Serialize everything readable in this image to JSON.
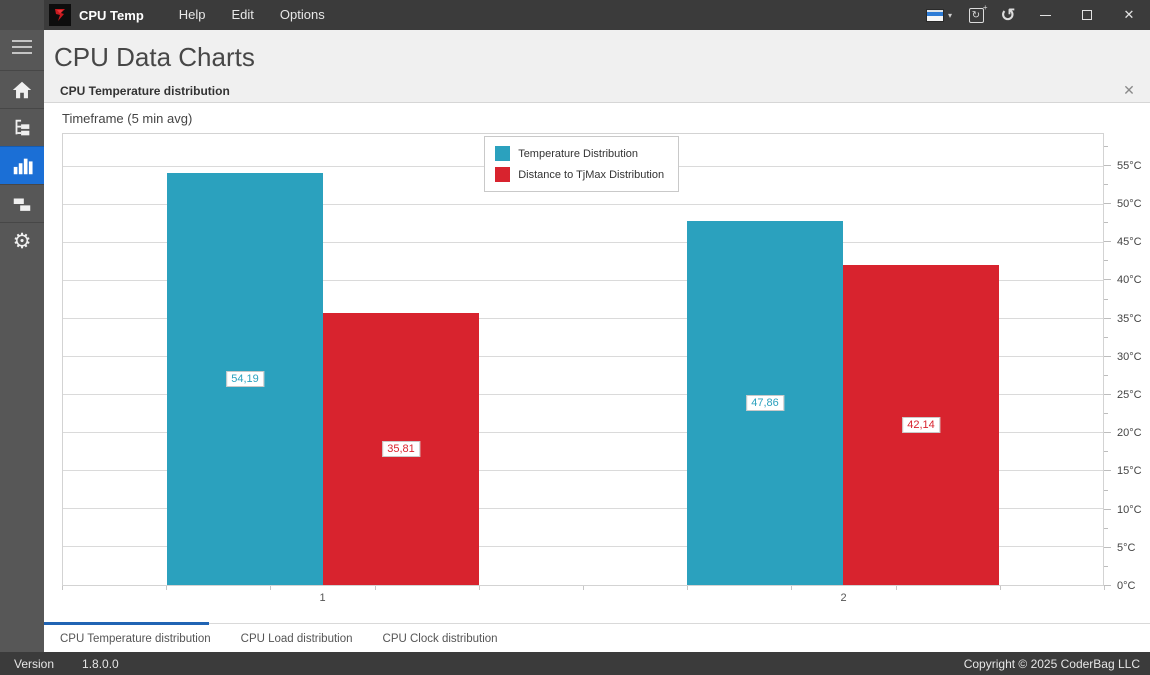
{
  "titlebar": {
    "app_title": "CPU Temp",
    "menus": [
      "Help",
      "Edit",
      "Options"
    ]
  },
  "icons": {
    "caret_down": "▾",
    "reset_glyph": "↻",
    "reset_plus": "+",
    "undo_glyph": "↺",
    "close_glyph": "✕",
    "panel_close_glyph": "✕"
  },
  "sidebar": {
    "items": [
      {
        "name": "home"
      },
      {
        "name": "sensor-tree"
      },
      {
        "name": "charts",
        "active": true
      },
      {
        "name": "layout"
      },
      {
        "name": "settings"
      }
    ]
  },
  "main": {
    "page_title": "CPU Data Charts",
    "panel_title": "CPU Temperature distribution",
    "timeframe_label": "Timeframe (5 min avg)"
  },
  "chart_data": {
    "type": "bar",
    "title": "CPU Temperature distribution",
    "subtitle": "Timeframe (5 min avg)",
    "categories": [
      "1",
      "2"
    ],
    "series": [
      {
        "name": "Temperature Distribution",
        "color": "#2ba1be",
        "values": [
          54.19,
          47.86
        ],
        "labels": [
          "54,19",
          "47,86"
        ]
      },
      {
        "name": "Distance to TjMax Distribution",
        "color": "#d8232e",
        "values": [
          35.81,
          42.14
        ],
        "labels": [
          "35,81",
          "42,14"
        ]
      }
    ],
    "y_tick_values": [
      0,
      5,
      10,
      15,
      20,
      25,
      30,
      35,
      40,
      45,
      50,
      55
    ],
    "y_tick_labels": [
      "0°C",
      "5°C",
      "10°C",
      "15°C",
      "20°C",
      "25°C",
      "30°C",
      "35°C",
      "40°C",
      "45°C",
      "50°C",
      "55°C"
    ],
    "ylim": [
      0,
      59.3
    ],
    "grid": "horizontal",
    "legend_position": "top-center"
  },
  "tabs": [
    {
      "label": "CPU Temperature distribution",
      "active": true
    },
    {
      "label": "CPU Load distribution",
      "active": false
    },
    {
      "label": "CPU Clock distribution",
      "active": false
    }
  ],
  "statusbar": {
    "version_label": "Version",
    "version_value": "1.8.0.0",
    "copyright": "Copyright © 2025 CoderBag LLC"
  }
}
